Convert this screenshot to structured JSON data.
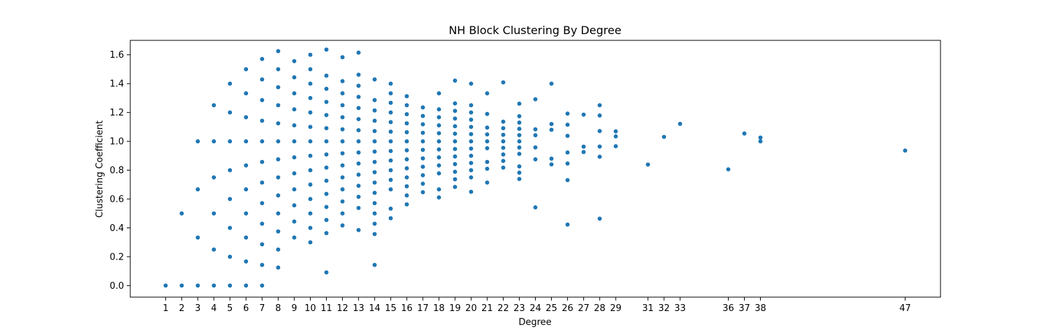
{
  "chart_data": {
    "type": "scatter",
    "title": "NH Block Clustering By Degree",
    "xlabel": "Degree",
    "ylabel": "Clustering Coefficient",
    "xlim": [
      -1.2,
      49.2
    ],
    "ylim": [
      -0.08,
      1.7
    ],
    "xticks": [
      1,
      2,
      3,
      4,
      5,
      6,
      7,
      8,
      9,
      10,
      11,
      12,
      13,
      14,
      15,
      16,
      17,
      18,
      19,
      20,
      21,
      22,
      23,
      24,
      25,
      26,
      27,
      28,
      29,
      31,
      32,
      33,
      36,
      37,
      38,
      47
    ],
    "yticks": [
      0.0,
      0.2,
      0.4,
      0.6,
      0.8,
      1.0,
      1.2,
      1.4,
      1.6
    ],
    "grid": false,
    "marker_color": "#1f77b4",
    "points": [
      [
        1,
        0.0
      ],
      [
        2,
        0.0
      ],
      [
        2,
        0.5
      ],
      [
        3,
        0.0
      ],
      [
        3,
        0.333
      ],
      [
        3,
        0.667
      ],
      [
        3,
        1.0
      ],
      [
        4,
        0.0
      ],
      [
        4,
        0.25
      ],
      [
        4,
        0.5
      ],
      [
        4,
        0.75
      ],
      [
        4,
        1.0
      ],
      [
        4,
        1.25
      ],
      [
        5,
        0.0
      ],
      [
        5,
        0.2
      ],
      [
        5,
        0.4
      ],
      [
        5,
        0.6
      ],
      [
        5,
        0.8
      ],
      [
        5,
        1.0
      ],
      [
        5,
        1.2
      ],
      [
        5,
        1.4
      ],
      [
        6,
        0.0
      ],
      [
        6,
        0.167
      ],
      [
        6,
        0.333
      ],
      [
        6,
        0.5
      ],
      [
        6,
        0.667
      ],
      [
        6,
        0.833
      ],
      [
        6,
        1.0
      ],
      [
        6,
        1.167
      ],
      [
        6,
        1.333
      ],
      [
        6,
        1.5
      ],
      [
        7,
        0.0
      ],
      [
        7,
        0.143
      ],
      [
        7,
        0.286
      ],
      [
        7,
        0.429
      ],
      [
        7,
        0.571
      ],
      [
        7,
        0.714
      ],
      [
        7,
        0.857
      ],
      [
        7,
        1.0
      ],
      [
        7,
        1.143
      ],
      [
        7,
        1.286
      ],
      [
        7,
        1.429
      ],
      [
        7,
        1.571
      ],
      [
        8,
        0.125
      ],
      [
        8,
        0.25
      ],
      [
        8,
        0.375
      ],
      [
        8,
        0.5
      ],
      [
        8,
        0.625
      ],
      [
        8,
        0.75
      ],
      [
        8,
        0.875
      ],
      [
        8,
        1.0
      ],
      [
        8,
        1.125
      ],
      [
        8,
        1.25
      ],
      [
        8,
        1.375
      ],
      [
        8,
        1.5
      ],
      [
        8,
        1.625
      ],
      [
        9,
        0.333
      ],
      [
        9,
        0.444
      ],
      [
        9,
        0.556
      ],
      [
        9,
        0.667
      ],
      [
        9,
        0.778
      ],
      [
        9,
        0.889
      ],
      [
        9,
        1.0
      ],
      [
        9,
        1.111
      ],
      [
        9,
        1.222
      ],
      [
        9,
        1.333
      ],
      [
        9,
        1.444
      ],
      [
        9,
        1.556
      ],
      [
        10,
        0.3
      ],
      [
        10,
        0.4
      ],
      [
        10,
        0.5
      ],
      [
        10,
        0.6
      ],
      [
        10,
        0.7
      ],
      [
        10,
        0.8
      ],
      [
        10,
        0.9
      ],
      [
        10,
        1.0
      ],
      [
        10,
        1.1
      ],
      [
        10,
        1.2
      ],
      [
        10,
        1.3
      ],
      [
        10,
        1.4
      ],
      [
        10,
        1.5
      ],
      [
        10,
        1.6
      ],
      [
        11,
        0.091
      ],
      [
        11,
        0.364
      ],
      [
        11,
        0.455
      ],
      [
        11,
        0.545
      ],
      [
        11,
        0.636
      ],
      [
        11,
        0.727
      ],
      [
        11,
        0.818
      ],
      [
        11,
        0.909
      ],
      [
        11,
        1.0
      ],
      [
        11,
        1.091
      ],
      [
        11,
        1.182
      ],
      [
        11,
        1.273
      ],
      [
        11,
        1.364
      ],
      [
        11,
        1.455
      ],
      [
        11,
        1.636
      ],
      [
        12,
        0.417
      ],
      [
        12,
        0.5
      ],
      [
        12,
        0.583
      ],
      [
        12,
        0.667
      ],
      [
        12,
        0.75
      ],
      [
        12,
        0.833
      ],
      [
        12,
        0.917
      ],
      [
        12,
        1.0
      ],
      [
        12,
        1.083
      ],
      [
        12,
        1.167
      ],
      [
        12,
        1.25
      ],
      [
        12,
        1.333
      ],
      [
        12,
        1.417
      ],
      [
        12,
        1.583
      ],
      [
        13,
        0.385
      ],
      [
        13,
        0.538
      ],
      [
        13,
        0.615
      ],
      [
        13,
        0.692
      ],
      [
        13,
        0.769
      ],
      [
        13,
        0.846
      ],
      [
        13,
        0.923
      ],
      [
        13,
        1.0
      ],
      [
        13,
        1.077
      ],
      [
        13,
        1.154
      ],
      [
        13,
        1.231
      ],
      [
        13,
        1.308
      ],
      [
        13,
        1.385
      ],
      [
        13,
        1.462
      ],
      [
        13,
        1.615
      ],
      [
        14,
        0.143
      ],
      [
        14,
        0.357
      ],
      [
        14,
        0.429
      ],
      [
        14,
        0.5
      ],
      [
        14,
        0.571
      ],
      [
        14,
        0.643
      ],
      [
        14,
        0.714
      ],
      [
        14,
        0.786
      ],
      [
        14,
        0.857
      ],
      [
        14,
        0.929
      ],
      [
        14,
        1.0
      ],
      [
        14,
        1.071
      ],
      [
        14,
        1.143
      ],
      [
        14,
        1.214
      ],
      [
        14,
        1.286
      ],
      [
        14,
        1.429
      ],
      [
        15,
        0.467
      ],
      [
        15,
        0.533
      ],
      [
        15,
        0.667
      ],
      [
        15,
        0.733
      ],
      [
        15,
        0.8
      ],
      [
        15,
        0.867
      ],
      [
        15,
        0.933
      ],
      [
        15,
        1.0
      ],
      [
        15,
        1.067
      ],
      [
        15,
        1.133
      ],
      [
        15,
        1.2
      ],
      [
        15,
        1.267
      ],
      [
        15,
        1.333
      ],
      [
        15,
        1.4
      ],
      [
        16,
        0.563
      ],
      [
        16,
        0.625
      ],
      [
        16,
        0.688
      ],
      [
        16,
        0.75
      ],
      [
        16,
        0.813
      ],
      [
        16,
        0.875
      ],
      [
        16,
        0.938
      ],
      [
        16,
        1.0
      ],
      [
        16,
        1.063
      ],
      [
        16,
        1.125
      ],
      [
        16,
        1.188
      ],
      [
        16,
        1.25
      ],
      [
        16,
        1.313
      ],
      [
        17,
        0.647
      ],
      [
        17,
        0.706
      ],
      [
        17,
        0.765
      ],
      [
        17,
        0.824
      ],
      [
        17,
        0.882
      ],
      [
        17,
        0.941
      ],
      [
        17,
        1.0
      ],
      [
        17,
        1.059
      ],
      [
        17,
        1.118
      ],
      [
        17,
        1.176
      ],
      [
        17,
        1.235
      ],
      [
        18,
        0.611
      ],
      [
        18,
        0.667
      ],
      [
        18,
        0.778
      ],
      [
        18,
        0.833
      ],
      [
        18,
        0.889
      ],
      [
        18,
        0.944
      ],
      [
        18,
        1.0
      ],
      [
        18,
        1.056
      ],
      [
        18,
        1.111
      ],
      [
        18,
        1.167
      ],
      [
        18,
        1.222
      ],
      [
        18,
        1.333
      ],
      [
        19,
        0.684
      ],
      [
        19,
        0.737
      ],
      [
        19,
        0.789
      ],
      [
        19,
        0.842
      ],
      [
        19,
        0.895
      ],
      [
        19,
        0.947
      ],
      [
        19,
        1.0
      ],
      [
        19,
        1.053
      ],
      [
        19,
        1.105
      ],
      [
        19,
        1.158
      ],
      [
        19,
        1.211
      ],
      [
        19,
        1.263
      ],
      [
        19,
        1.421
      ],
      [
        20,
        0.65
      ],
      [
        20,
        0.75
      ],
      [
        20,
        0.8
      ],
      [
        20,
        0.85
      ],
      [
        20,
        0.9
      ],
      [
        20,
        0.95
      ],
      [
        20,
        1.0
      ],
      [
        20,
        1.05
      ],
      [
        20,
        1.1
      ],
      [
        20,
        1.15
      ],
      [
        20,
        1.2
      ],
      [
        20,
        1.25
      ],
      [
        20,
        1.4
      ],
      [
        21,
        0.714
      ],
      [
        21,
        0.81
      ],
      [
        21,
        0.857
      ],
      [
        21,
        0.952
      ],
      [
        21,
        1.0
      ],
      [
        21,
        1.048
      ],
      [
        21,
        1.095
      ],
      [
        21,
        1.19
      ],
      [
        21,
        1.333
      ],
      [
        22,
        0.818
      ],
      [
        22,
        0.864
      ],
      [
        22,
        0.909
      ],
      [
        22,
        0.955
      ],
      [
        22,
        1.0
      ],
      [
        22,
        1.045
      ],
      [
        22,
        1.091
      ],
      [
        22,
        1.136
      ],
      [
        22,
        1.409
      ],
      [
        23,
        0.739
      ],
      [
        23,
        0.783
      ],
      [
        23,
        0.826
      ],
      [
        23,
        0.913
      ],
      [
        23,
        0.957
      ],
      [
        23,
        1.0
      ],
      [
        23,
        1.043
      ],
      [
        23,
        1.087
      ],
      [
        23,
        1.13
      ],
      [
        23,
        1.174
      ],
      [
        23,
        1.261
      ],
      [
        24,
        0.542
      ],
      [
        24,
        0.875
      ],
      [
        24,
        0.958
      ],
      [
        24,
        1.042
      ],
      [
        24,
        1.083
      ],
      [
        24,
        1.292
      ],
      [
        25,
        0.84
      ],
      [
        25,
        0.88
      ],
      [
        25,
        1.08
      ],
      [
        25,
        1.12
      ],
      [
        25,
        1.4
      ],
      [
        26,
        0.423
      ],
      [
        26,
        0.731
      ],
      [
        26,
        0.846
      ],
      [
        26,
        0.923
      ],
      [
        26,
        1.038
      ],
      [
        26,
        1.115
      ],
      [
        26,
        1.192
      ],
      [
        27,
        0.926
      ],
      [
        27,
        0.963
      ],
      [
        27,
        1.185
      ],
      [
        28,
        0.464
      ],
      [
        28,
        0.893
      ],
      [
        28,
        0.964
      ],
      [
        28,
        1.071
      ],
      [
        28,
        1.179
      ],
      [
        28,
        1.25
      ],
      [
        29,
        0.966
      ],
      [
        29,
        1.034
      ],
      [
        29,
        1.069
      ],
      [
        31,
        0.839
      ],
      [
        32,
        1.031
      ],
      [
        33,
        1.121
      ],
      [
        36,
        0.806
      ],
      [
        37,
        1.054
      ],
      [
        38,
        1.0
      ],
      [
        38,
        1.026
      ],
      [
        47,
        0.936
      ]
    ]
  }
}
